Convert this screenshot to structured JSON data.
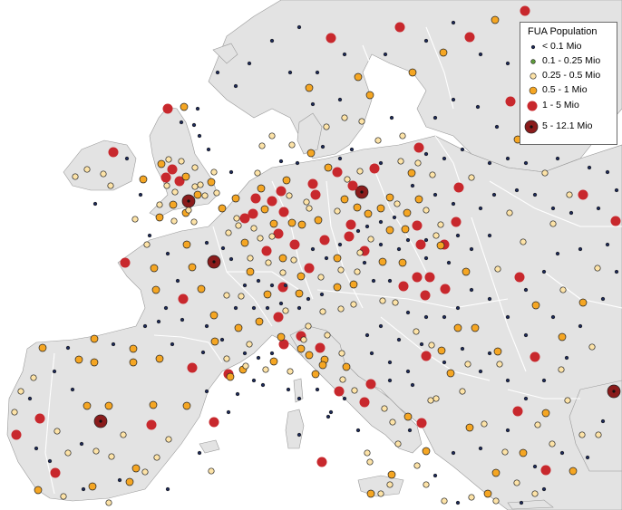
{
  "legend": {
    "title": "FUA Population",
    "classes": [
      {
        "label": "< 0.1 Mio",
        "fill": "#1d2a5a",
        "size": "xs"
      },
      {
        "label": "0.1 - 0.25 Mio",
        "fill": "#5e9b3a",
        "size": "s"
      },
      {
        "label": "0.25 - 0.5 Mio",
        "fill": "#fde3a7",
        "size": "m"
      },
      {
        "label": "0.5 - 1 Mio",
        "fill": "#f5a623",
        "size": "l"
      },
      {
        "label": "1 - 5 Mio",
        "fill": "#c8282d",
        "size": "xl"
      },
      {
        "label": "5 - 12.1 Mio",
        "fill": "#8a1b1b",
        "size": "xxl"
      }
    ]
  },
  "colors": {
    "sea": "#ffffff",
    "land": "#e3e3e3",
    "border": "#ffffff",
    "outline": "#9a9a9a"
  }
}
